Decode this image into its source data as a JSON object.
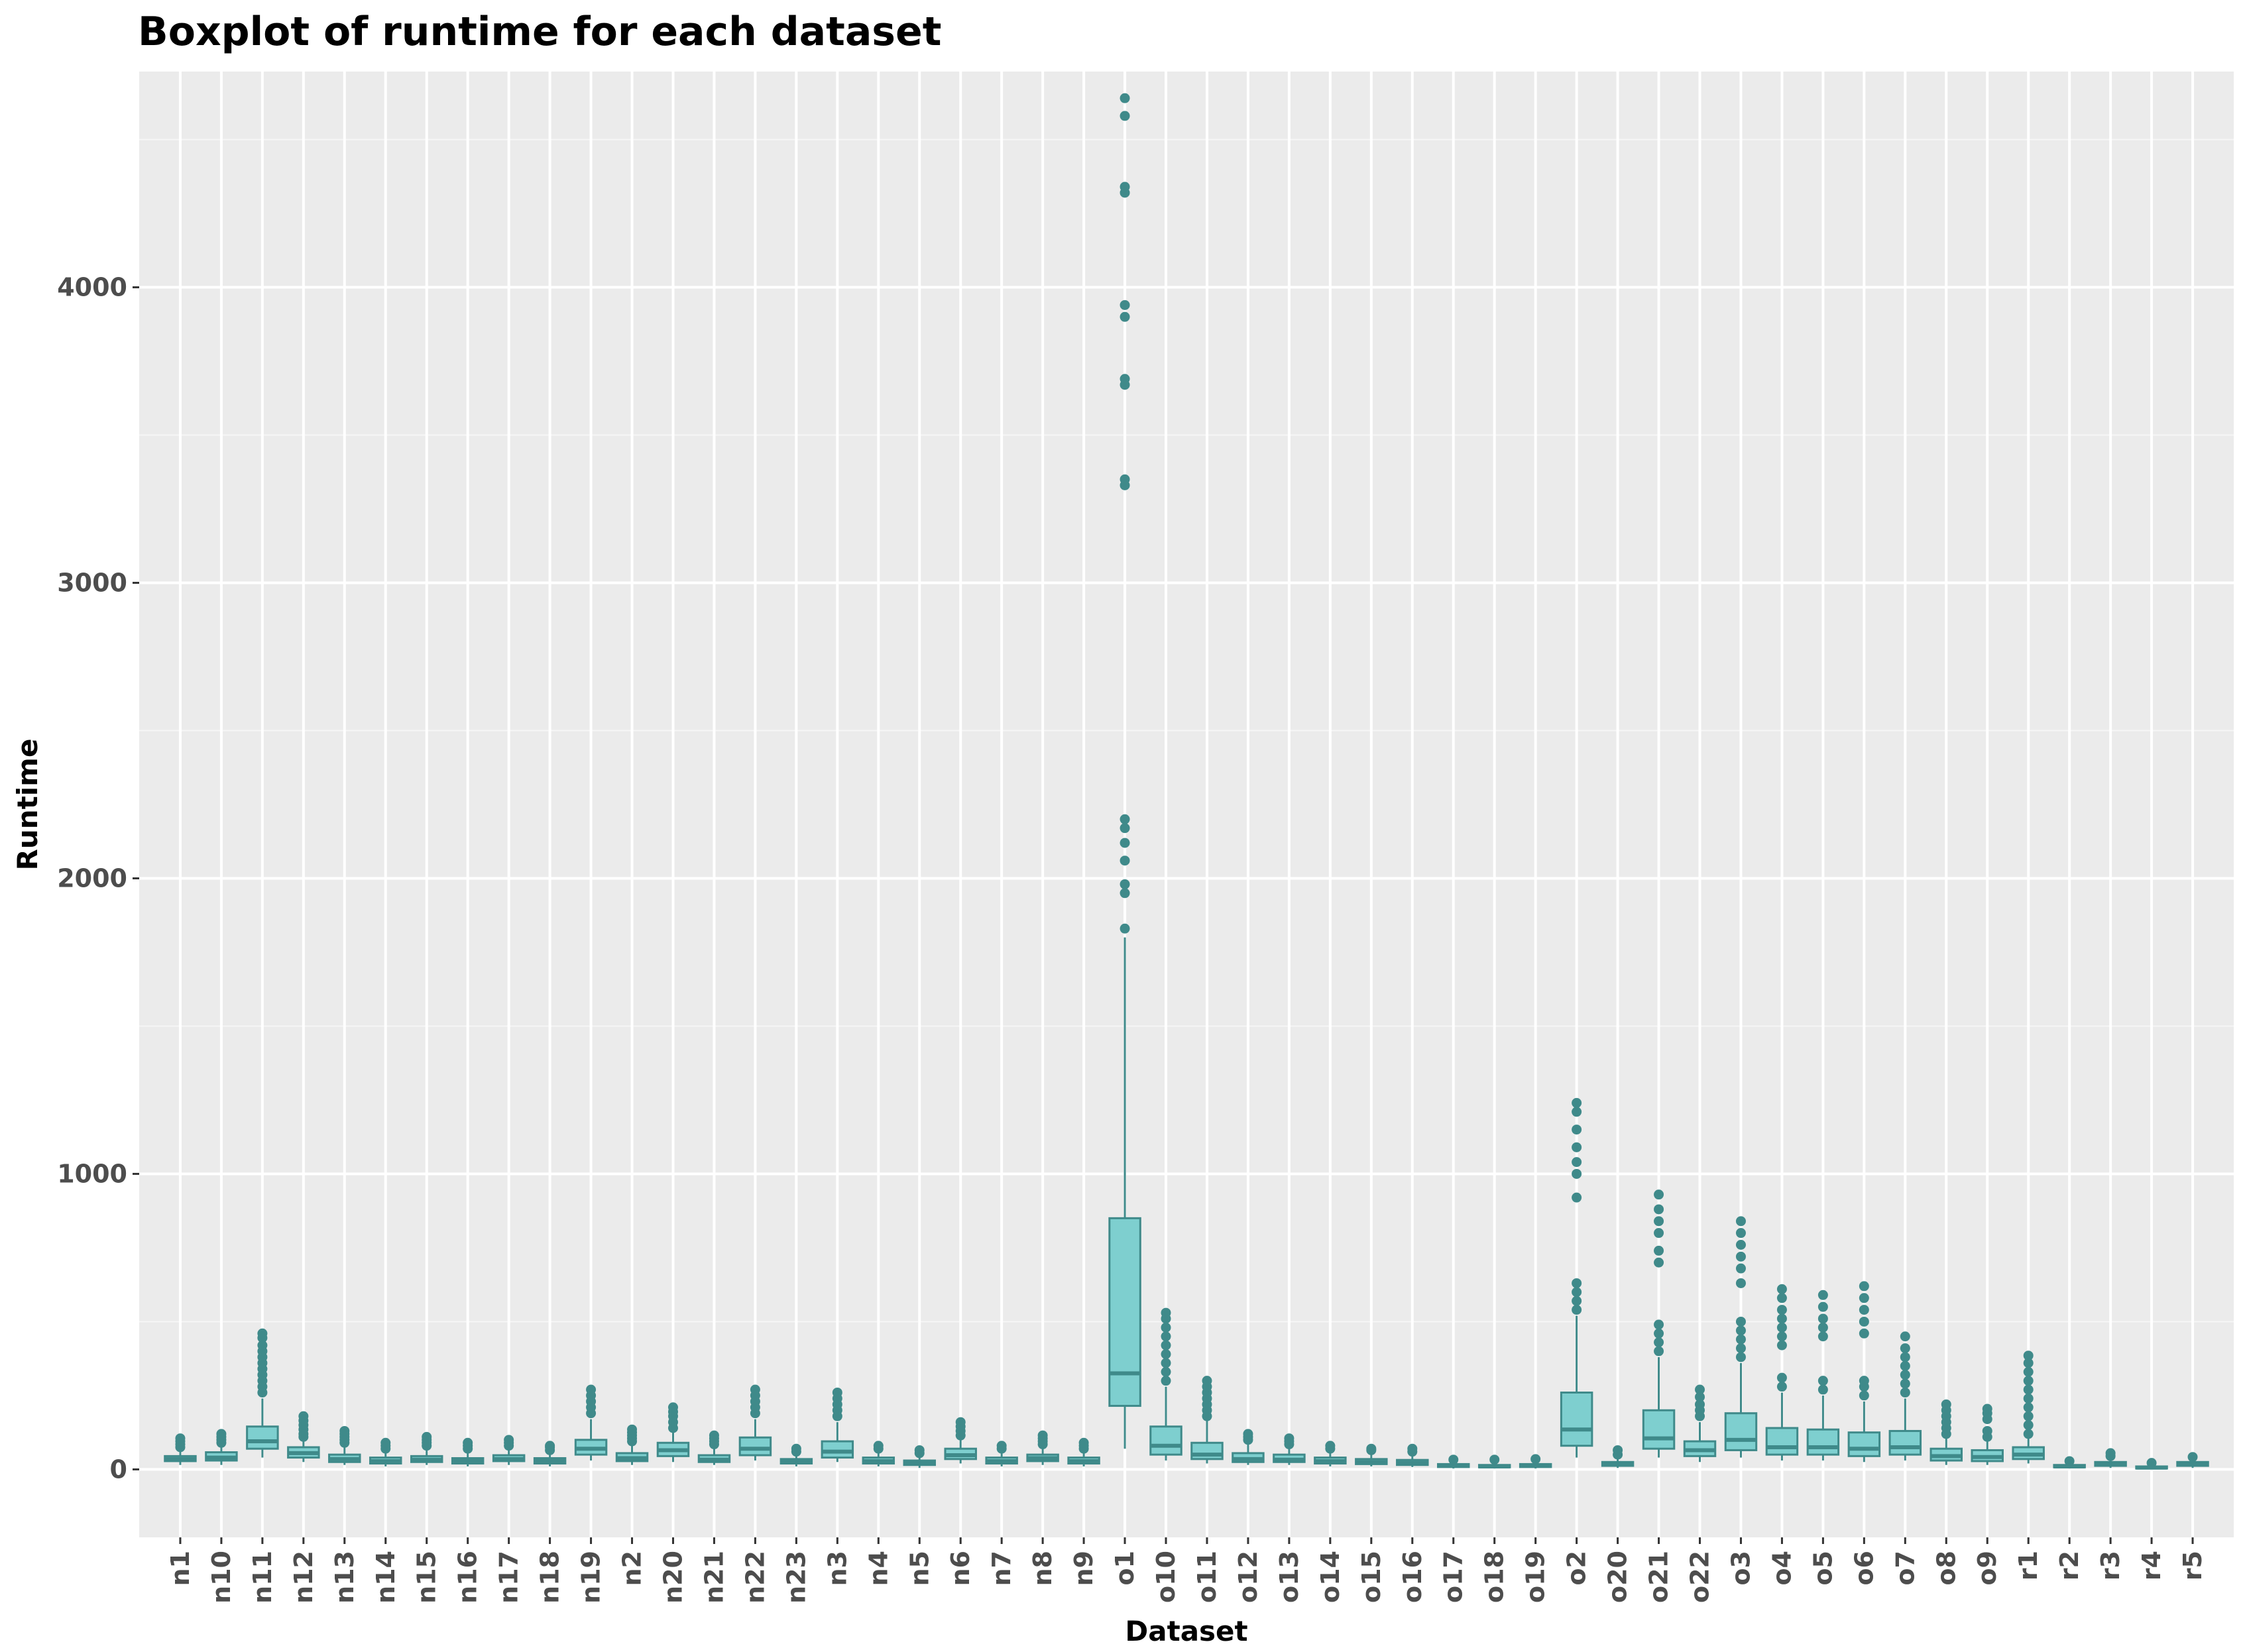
{
  "colors": {
    "panel_bg": "#ebebeb",
    "grid_major": "#ffffff",
    "box_fill": "#7ecfcf",
    "box_line": "#3f8a8a",
    "outlier": "#3f8a8a"
  },
  "chart_data": {
    "type": "boxplot",
    "title": "Boxplot of runtime for each dataset",
    "xlabel": "Dataset",
    "ylabel": "Runtime",
    "ylim": [
      -230,
      4730
    ],
    "yticks": [
      0,
      1000,
      2000,
      3000,
      4000
    ],
    "grid": true,
    "legend": "none",
    "categories": [
      "n1",
      "n10",
      "n11",
      "n12",
      "n13",
      "n14",
      "n15",
      "n16",
      "n17",
      "n18",
      "n19",
      "n2",
      "n20",
      "n21",
      "n22",
      "n23",
      "n3",
      "n4",
      "n5",
      "n6",
      "n7",
      "n8",
      "n9",
      "o1",
      "o10",
      "o11",
      "o12",
      "o13",
      "o14",
      "o15",
      "o16",
      "o17",
      "o18",
      "o19",
      "o2",
      "o20",
      "o21",
      "o22",
      "o3",
      "o4",
      "o5",
      "o6",
      "o7",
      "o8",
      "o9",
      "r1",
      "r2",
      "r3",
      "r4",
      "r5"
    ],
    "boxes": [
      {
        "min": 15,
        "q1": 28,
        "median": 35,
        "q3": 45,
        "max": 65,
        "outliers": [
          75,
          85,
          95,
          105
        ]
      },
      {
        "min": 15,
        "q1": 30,
        "median": 40,
        "q3": 58,
        "max": 80,
        "outliers": [
          90,
          100,
          110,
          120
        ]
      },
      {
        "min": 40,
        "q1": 70,
        "median": 95,
        "q3": 145,
        "max": 240,
        "outliers": [
          260,
          280,
          300,
          320,
          340,
          360,
          380,
          400,
          420,
          445,
          460
        ]
      },
      {
        "min": 25,
        "q1": 40,
        "median": 55,
        "q3": 75,
        "max": 100,
        "outliers": [
          110,
          120,
          135,
          150,
          165,
          180
        ]
      },
      {
        "min": 15,
        "q1": 25,
        "median": 35,
        "q3": 50,
        "max": 80,
        "outliers": [
          90,
          100,
          110,
          120,
          130
        ]
      },
      {
        "min": 10,
        "q1": 20,
        "median": 28,
        "q3": 40,
        "max": 60,
        "outliers": [
          70,
          80,
          90
        ]
      },
      {
        "min": 15,
        "q1": 25,
        "median": 33,
        "q3": 45,
        "max": 70,
        "outliers": [
          80,
          90,
          100,
          110
        ]
      },
      {
        "min": 10,
        "q1": 20,
        "median": 28,
        "q3": 38,
        "max": 60,
        "outliers": [
          70,
          80,
          90
        ]
      },
      {
        "min": 15,
        "q1": 28,
        "median": 35,
        "q3": 48,
        "max": 70,
        "outliers": [
          80,
          90,
          100
        ]
      },
      {
        "min": 10,
        "q1": 20,
        "median": 28,
        "q3": 38,
        "max": 55,
        "outliers": [
          65,
          75,
          80
        ]
      },
      {
        "min": 30,
        "q1": 50,
        "median": 70,
        "q3": 100,
        "max": 170,
        "outliers": [
          190,
          210,
          230,
          250,
          270
        ]
      },
      {
        "min": 15,
        "q1": 28,
        "median": 38,
        "q3": 55,
        "max": 85,
        "outliers": [
          95,
          105,
          115,
          125,
          135
        ]
      },
      {
        "min": 25,
        "q1": 45,
        "median": 65,
        "q3": 90,
        "max": 130,
        "outliers": [
          140,
          160,
          180,
          195,
          210
        ]
      },
      {
        "min": 15,
        "q1": 25,
        "median": 33,
        "q3": 48,
        "max": 75,
        "outliers": [
          85,
          95,
          105,
          115
        ]
      },
      {
        "min": 30,
        "q1": 48,
        "median": 70,
        "q3": 108,
        "max": 170,
        "outliers": [
          190,
          210,
          230,
          250,
          270
        ]
      },
      {
        "min": 10,
        "q1": 20,
        "median": 27,
        "q3": 35,
        "max": 50,
        "outliers": [
          60,
          70
        ]
      },
      {
        "min": 25,
        "q1": 40,
        "median": 60,
        "q3": 95,
        "max": 160,
        "outliers": [
          180,
          200,
          220,
          240,
          260
        ]
      },
      {
        "min": 10,
        "q1": 20,
        "median": 28,
        "q3": 40,
        "max": 60,
        "outliers": [
          70,
          80
        ]
      },
      {
        "min": 5,
        "q1": 15,
        "median": 20,
        "q3": 30,
        "max": 45,
        "outliers": [
          55,
          65
        ]
      },
      {
        "min": 20,
        "q1": 35,
        "median": 48,
        "q3": 70,
        "max": 105,
        "outliers": [
          115,
          130,
          145,
          160
        ]
      },
      {
        "min": 10,
        "q1": 20,
        "median": 28,
        "q3": 40,
        "max": 60,
        "outliers": [
          70,
          80
        ]
      },
      {
        "min": 15,
        "q1": 28,
        "median": 38,
        "q3": 50,
        "max": 75,
        "outliers": [
          85,
          95,
          105,
          115
        ]
      },
      {
        "min": 10,
        "q1": 20,
        "median": 28,
        "q3": 40,
        "max": 60,
        "outliers": [
          70,
          80,
          90
        ]
      },
      {
        "min": 70,
        "q1": 215,
        "median": 325,
        "q3": 850,
        "max": 1800,
        "outliers": [
          1830,
          1950,
          1980,
          2060,
          2120,
          2170,
          2200,
          3330,
          3350,
          3670,
          3690,
          3900,
          3940,
          4320,
          4340,
          4580,
          4640
        ]
      },
      {
        "min": 30,
        "q1": 50,
        "median": 80,
        "q3": 145,
        "max": 280,
        "outliers": [
          300,
          330,
          360,
          390,
          420,
          450,
          480,
          510,
          530
        ]
      },
      {
        "min": 20,
        "q1": 35,
        "median": 50,
        "q3": 90,
        "max": 165,
        "outliers": [
          180,
          200,
          220,
          240,
          260,
          280,
          300
        ]
      },
      {
        "min": 15,
        "q1": 25,
        "median": 35,
        "q3": 55,
        "max": 90,
        "outliers": [
          100,
          110,
          120
        ]
      },
      {
        "min": 15,
        "q1": 25,
        "median": 33,
        "q3": 50,
        "max": 75,
        "outliers": [
          85,
          95,
          105
        ]
      },
      {
        "min": 10,
        "q1": 20,
        "median": 28,
        "q3": 40,
        "max": 60,
        "outliers": [
          70,
          80
        ]
      },
      {
        "min": 10,
        "q1": 18,
        "median": 25,
        "q3": 35,
        "max": 55,
        "outliers": [
          65,
          70
        ]
      },
      {
        "min": 8,
        "q1": 15,
        "median": 22,
        "q3": 32,
        "max": 50,
        "outliers": [
          60,
          70
        ]
      },
      {
        "min": 3,
        "q1": 8,
        "median": 12,
        "q3": 18,
        "max": 28,
        "outliers": [
          33
        ]
      },
      {
        "min": 3,
        "q1": 7,
        "median": 10,
        "q3": 15,
        "max": 25,
        "outliers": [
          33
        ]
      },
      {
        "min": 3,
        "q1": 8,
        "median": 12,
        "q3": 18,
        "max": 28,
        "outliers": [
          35
        ]
      },
      {
        "min": 40,
        "q1": 80,
        "median": 135,
        "q3": 260,
        "max": 520,
        "outliers": [
          540,
          570,
          600,
          630,
          920,
          1000,
          1040,
          1090,
          1150,
          1210,
          1240
        ]
      },
      {
        "min": 5,
        "q1": 12,
        "median": 18,
        "q3": 25,
        "max": 40,
        "outliers": [
          50,
          65
        ]
      },
      {
        "min": 40,
        "q1": 70,
        "median": 105,
        "q3": 200,
        "max": 380,
        "outliers": [
          400,
          430,
          460,
          490,
          700,
          740,
          800,
          840,
          880,
          930
        ]
      },
      {
        "min": 25,
        "q1": 45,
        "median": 65,
        "q3": 95,
        "max": 160,
        "outliers": [
          180,
          200,
          220,
          245,
          270
        ]
      },
      {
        "min": 40,
        "q1": 65,
        "median": 100,
        "q3": 190,
        "max": 360,
        "outliers": [
          380,
          410,
          440,
          470,
          500,
          630,
          680,
          720,
          760,
          800,
          840
        ]
      },
      {
        "min": 30,
        "q1": 50,
        "median": 75,
        "q3": 140,
        "max": 260,
        "outliers": [
          280,
          310,
          420,
          450,
          480,
          510,
          540,
          580,
          610
        ]
      },
      {
        "min": 30,
        "q1": 50,
        "median": 75,
        "q3": 135,
        "max": 250,
        "outliers": [
          270,
          300,
          450,
          480,
          510,
          550,
          590
        ]
      },
      {
        "min": 25,
        "q1": 45,
        "median": 70,
        "q3": 125,
        "max": 230,
        "outliers": [
          250,
          280,
          300,
          460,
          500,
          540,
          580,
          620
        ]
      },
      {
        "min": 30,
        "q1": 50,
        "median": 75,
        "q3": 130,
        "max": 240,
        "outliers": [
          260,
          290,
          320,
          350,
          380,
          410,
          450
        ]
      },
      {
        "min": 15,
        "q1": 30,
        "median": 45,
        "q3": 70,
        "max": 110,
        "outliers": [
          120,
          140,
          160,
          180,
          200,
          220
        ]
      },
      {
        "min": 15,
        "q1": 28,
        "median": 42,
        "q3": 65,
        "max": 100,
        "outliers": [
          110,
          130,
          170,
          190,
          205
        ]
      },
      {
        "min": 20,
        "q1": 35,
        "median": 50,
        "q3": 75,
        "max": 110,
        "outliers": [
          120,
          150,
          180,
          210,
          240,
          270,
          300,
          330,
          360,
          385
        ]
      },
      {
        "min": 3,
        "q1": 7,
        "median": 10,
        "q3": 15,
        "max": 22,
        "outliers": [
          28
        ]
      },
      {
        "min": 5,
        "q1": 12,
        "median": 18,
        "q3": 25,
        "max": 38,
        "outliers": [
          45,
          55
        ]
      },
      {
        "min": 0,
        "q1": 3,
        "median": 6,
        "q3": 10,
        "max": 16,
        "outliers": [
          22
        ]
      },
      {
        "min": 5,
        "q1": 12,
        "median": 18,
        "q3": 25,
        "max": 35,
        "outliers": [
          42
        ]
      }
    ]
  }
}
